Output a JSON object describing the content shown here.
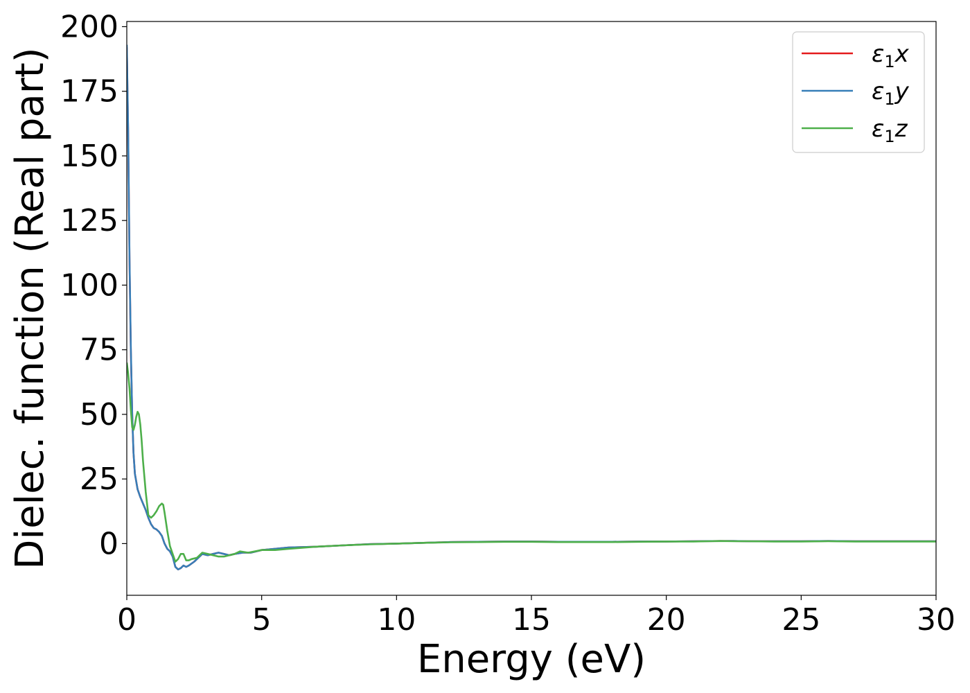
{
  "chart_data": {
    "type": "line",
    "xlabel": "Energy (eV)",
    "ylabel": "Dielec. function (Real part)",
    "xlim": [
      0,
      30
    ],
    "ylim": [
      -20,
      202
    ],
    "xticks": [
      0,
      5,
      10,
      15,
      20,
      25,
      30
    ],
    "xtick_labels": [
      "0",
      "5",
      "10",
      "15",
      "20",
      "25",
      "30"
    ],
    "yticks": [
      0,
      25,
      50,
      75,
      100,
      125,
      150,
      175,
      200
    ],
    "ytick_labels": [
      "0",
      "25",
      "50",
      "75",
      "100",
      "125",
      "150",
      "175",
      "200"
    ],
    "grid": false,
    "legend_position": "top-right",
    "series": [
      {
        "name": "ε₁x",
        "legend_label": {
          "sym": "ε",
          "sub": "1",
          "axis": "x"
        },
        "color": "#e41a1c",
        "x": [
          0.0,
          0.05,
          0.1,
          0.15,
          0.2,
          0.25,
          0.3,
          0.4,
          0.5,
          0.6,
          0.7,
          0.8,
          0.9,
          1.0,
          1.1,
          1.2,
          1.3,
          1.4,
          1.5,
          1.6,
          1.7,
          1.8,
          1.9,
          2.0,
          2.1,
          2.2,
          2.3,
          2.5,
          2.7,
          2.8,
          3.0,
          3.2,
          3.4,
          3.6,
          3.8,
          4.0,
          4.3,
          4.6,
          5.0,
          5.5,
          6.0,
          7.0,
          8.0,
          9.0,
          10.0,
          11.0,
          12.0,
          13.0,
          14.0,
          15.0,
          16.0,
          17.0,
          18.0,
          19.0,
          20.0,
          21.0,
          22.0,
          22.5,
          23.0,
          24.0,
          25.0,
          26.0,
          27.0,
          28.0,
          29.0,
          30.0
        ],
        "values": [
          192,
          160,
          110,
          75,
          50,
          35,
          27,
          21,
          18,
          15.5,
          13,
          10,
          7.5,
          6,
          5.5,
          4.5,
          3,
          0,
          -2,
          -3,
          -5,
          -9,
          -10,
          -9.5,
          -8.5,
          -9,
          -8.5,
          -7,
          -5,
          -4,
          -4.5,
          -4,
          -3.5,
          -4,
          -4.5,
          -4,
          -3.5,
          -3.5,
          -2.5,
          -2,
          -1.5,
          -1.2,
          -0.7,
          -0.2,
          0.0,
          0.3,
          0.6,
          0.7,
          0.8,
          0.8,
          0.7,
          0.7,
          0.7,
          0.8,
          0.8,
          0.9,
          1.0,
          1.0,
          0.9,
          0.9,
          0.9,
          1.0,
          0.9,
          0.9,
          0.9,
          0.9
        ]
      },
      {
        "name": "ε₁y",
        "legend_label": {
          "sym": "ε",
          "sub": "1",
          "axis": "y"
        },
        "color": "#377eb8",
        "x": [
          0.0,
          0.05,
          0.1,
          0.15,
          0.2,
          0.25,
          0.3,
          0.4,
          0.5,
          0.6,
          0.7,
          0.8,
          0.9,
          1.0,
          1.1,
          1.2,
          1.3,
          1.4,
          1.5,
          1.6,
          1.7,
          1.8,
          1.9,
          2.0,
          2.1,
          2.2,
          2.3,
          2.5,
          2.7,
          2.8,
          3.0,
          3.2,
          3.4,
          3.6,
          3.8,
          4.0,
          4.3,
          4.6,
          5.0,
          5.5,
          6.0,
          7.0,
          8.0,
          9.0,
          10.0,
          11.0,
          12.0,
          13.0,
          14.0,
          15.0,
          16.0,
          17.0,
          18.0,
          19.0,
          20.0,
          21.0,
          22.0,
          22.5,
          23.0,
          24.0,
          25.0,
          26.0,
          27.0,
          28.0,
          29.0,
          30.0
        ],
        "values": [
          193,
          161,
          111,
          76,
          50,
          35,
          27,
          21,
          18,
          15.5,
          13,
          10,
          7.5,
          6,
          5.5,
          4.5,
          3,
          0,
          -2,
          -3,
          -5,
          -9,
          -10,
          -9.5,
          -8.5,
          -9,
          -8.5,
          -7,
          -5,
          -4,
          -4.5,
          -4,
          -3.5,
          -4,
          -4.5,
          -4,
          -3.5,
          -3.5,
          -2.5,
          -2,
          -1.5,
          -1.2,
          -0.7,
          -0.2,
          0.0,
          0.3,
          0.6,
          0.7,
          0.8,
          0.8,
          0.7,
          0.7,
          0.7,
          0.8,
          0.8,
          0.9,
          1.0,
          1.0,
          0.9,
          0.9,
          0.9,
          1.0,
          0.9,
          0.9,
          0.9,
          0.9
        ]
      },
      {
        "name": "ε₁z",
        "legend_label": {
          "sym": "ε",
          "sub": "1",
          "axis": "z"
        },
        "color": "#4daf4a",
        "x": [
          0.0,
          0.05,
          0.1,
          0.15,
          0.2,
          0.25,
          0.3,
          0.35,
          0.4,
          0.45,
          0.5,
          0.55,
          0.6,
          0.7,
          0.8,
          0.9,
          1.0,
          1.1,
          1.2,
          1.3,
          1.35,
          1.4,
          1.5,
          1.6,
          1.7,
          1.8,
          1.9,
          2.0,
          2.1,
          2.2,
          2.3,
          2.4,
          2.6,
          2.8,
          3.0,
          3.2,
          3.4,
          3.6,
          3.8,
          4.0,
          4.2,
          4.5,
          5.0,
          5.5,
          6.0,
          7.0,
          8.0,
          9.0,
          10.0,
          11.0,
          12.0,
          13.0,
          14.0,
          15.0,
          16.0,
          17.0,
          18.0,
          19.0,
          20.0,
          21.0,
          22.0,
          22.5,
          23.0,
          24.0,
          25.0,
          26.0,
          27.0,
          28.0,
          29.0,
          30.0
        ],
        "values": [
          70,
          66,
          60,
          52,
          45,
          44,
          46,
          49,
          51,
          50,
          46,
          40,
          32,
          20,
          11,
          10,
          11,
          12.5,
          14.5,
          15.5,
          15,
          12,
          5,
          -1,
          -4,
          -7,
          -6,
          -4,
          -4,
          -6.5,
          -6.5,
          -6,
          -5.5,
          -3.5,
          -4,
          -4.5,
          -5,
          -5,
          -4.5,
          -4,
          -3,
          -3.5,
          -2.5,
          -2.5,
          -2,
          -1.2,
          -0.7,
          -0.3,
          0.0,
          0.3,
          0.5,
          0.6,
          0.7,
          0.7,
          0.6,
          0.6,
          0.6,
          0.7,
          0.8,
          0.8,
          1.0,
          0.9,
          0.9,
          0.8,
          0.8,
          0.9,
          0.8,
          0.8,
          0.8,
          0.8
        ]
      }
    ]
  }
}
